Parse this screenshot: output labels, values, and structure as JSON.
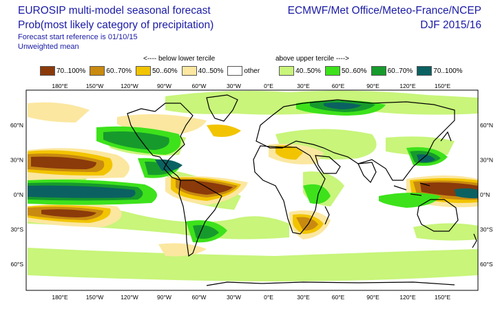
{
  "header": {
    "title": "EUROSIP multi-model seasonal forecast",
    "subtitle": "Prob(most likely category of precipitation)",
    "start_ref": "Forecast start reference is 01/10/15",
    "mean_type": "Unweighted mean",
    "agencies": "ECMWF/Met Office/Meteo-France/NCEP",
    "season": "DJF 2015/16"
  },
  "legend": {
    "below_heading": "<---- below lower tercile",
    "above_heading": "above upper tercile ---->",
    "items": [
      {
        "label": "70..100%",
        "color": "#8b3a0a"
      },
      {
        "label": "60..70%",
        "color": "#c98a10"
      },
      {
        "label": "50..60%",
        "color": "#f2c400"
      },
      {
        "label": "40..50%",
        "color": "#fbe7a0"
      },
      {
        "label": "other",
        "color": "#ffffff"
      },
      {
        "label": "40..50%",
        "color": "#c8f57a"
      },
      {
        "label": "50..60%",
        "color": "#3de21b"
      },
      {
        "label": "60..70%",
        "color": "#169a2c"
      },
      {
        "label": "70..100%",
        "color": "#0b6161"
      }
    ]
  },
  "map": {
    "lon_labels": [
      "180°E",
      "150°W",
      "120°W",
      "90°W",
      "60°W",
      "30°W",
      "0°E",
      "30°E",
      "60°E",
      "90°E",
      "120°E",
      "150°E"
    ],
    "lat_labels_left": [
      "60°N",
      "30°N",
      "0°N",
      "30°S",
      "60°S"
    ],
    "lat_labels_right": [
      "60°N",
      "30°N",
      "0°N",
      "30°S",
      "60°S"
    ]
  }
}
